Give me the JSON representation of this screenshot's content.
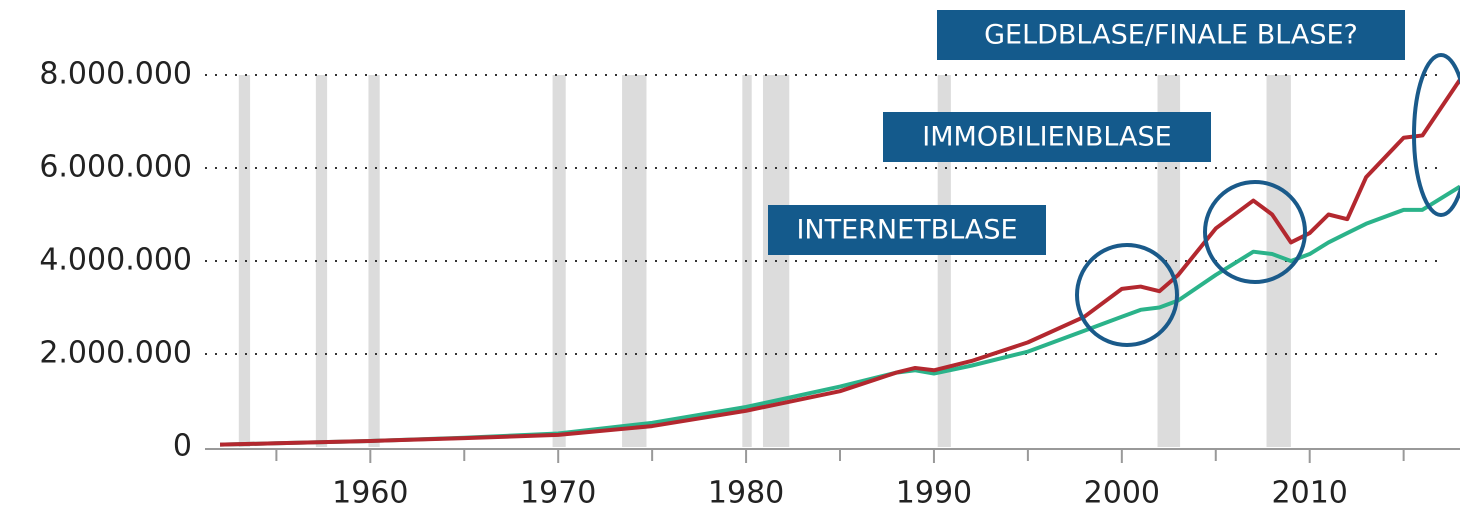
{
  "chart_data": {
    "type": "line",
    "x": [
      1952,
      1955,
      1960,
      1965,
      1970,
      1975,
      1980,
      1985,
      1988,
      1989,
      1990,
      1992,
      1995,
      1998,
      2000,
      2001,
      2002,
      2003,
      2005,
      2007,
      2008,
      2009,
      2010,
      2011,
      2012,
      2013,
      2015,
      2016,
      2018
    ],
    "series": [
      {
        "color": "#b3282f",
        "values": [
          50000,
          80000,
          130000,
          190000,
          260000,
          450000,
          780000,
          1200000,
          1600000,
          1700000,
          1650000,
          1850000,
          2250000,
          2800000,
          3400000,
          3450000,
          3350000,
          3700000,
          4700000,
          5300000,
          5000000,
          4400000,
          4600000,
          5000000,
          4900000,
          5800000,
          6650000,
          6700000,
          7900000
        ]
      },
      {
        "color": "#2bb38a",
        "values": [
          50000,
          80000,
          130000,
          200000,
          290000,
          520000,
          860000,
          1300000,
          1600000,
          1650000,
          1580000,
          1750000,
          2050000,
          2500000,
          2800000,
          2950000,
          3000000,
          3150000,
          3700000,
          4200000,
          4150000,
          4000000,
          4150000,
          4400000,
          4600000,
          4800000,
          5100000,
          5100000,
          5600000
        ]
      }
    ],
    "recessions": [
      [
        1953.0,
        1953.6
      ],
      [
        1957.1,
        1957.7
      ],
      [
        1959.9,
        1960.5
      ],
      [
        1969.7,
        1970.4
      ],
      [
        1973.4,
        1974.7
      ],
      [
        1979.8,
        1980.3
      ],
      [
        1980.9,
        1982.3
      ],
      [
        1990.2,
        1990.9
      ],
      [
        2001.9,
        2003.1
      ],
      [
        2007.7,
        2009.0
      ]
    ],
    "xlim": [
      1951.2,
      2018
    ],
    "xticks": [
      1960,
      1970,
      1980,
      1990,
      2000,
      2010
    ],
    "minor_xticks": [
      1955,
      1965,
      1975,
      1985,
      1995,
      2005,
      2015
    ],
    "ylim": [
      0,
      8000000
    ],
    "yticks": [
      0,
      {
        "value": 2000000,
        "label": "2.000.000"
      },
      {
        "value": 4000000,
        "label": "4.000.000"
      },
      {
        "value": 6000000,
        "label": "6.000.000"
      },
      {
        "value": 8000000,
        "label": "8.000.000"
      }
    ],
    "grid": true,
    "annotations": [
      "INTERNETBLASE",
      "IMMOBILIENBLASE",
      "GELDBLASE/FINALE BLASE?"
    ]
  }
}
